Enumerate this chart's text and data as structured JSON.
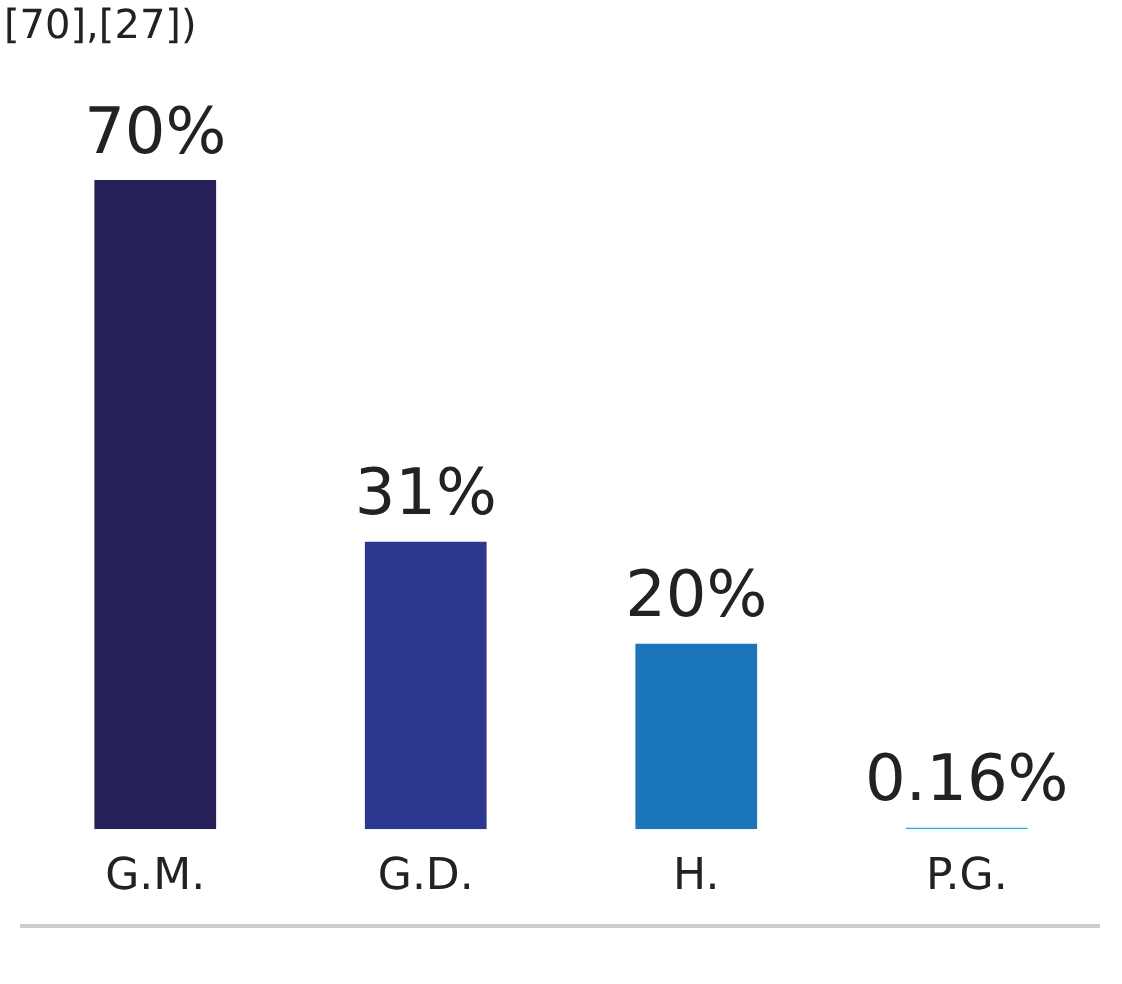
{
  "chart_data": {
    "type": "bar",
    "categories": [
      "G.M.",
      "G.D.",
      "H.",
      "P.G."
    ],
    "values": [
      70,
      31,
      20,
      0.16
    ],
    "colors": [
      "#262059",
      "#2b388f",
      "#1b75bb",
      "#29abe2"
    ],
    "value_labels": [
      "70%",
      "31%",
      "20%",
      "0.16%"
    ],
    "grid": false,
    "legend": false,
    "annotations": [
      "[70],[27])"
    ]
  }
}
